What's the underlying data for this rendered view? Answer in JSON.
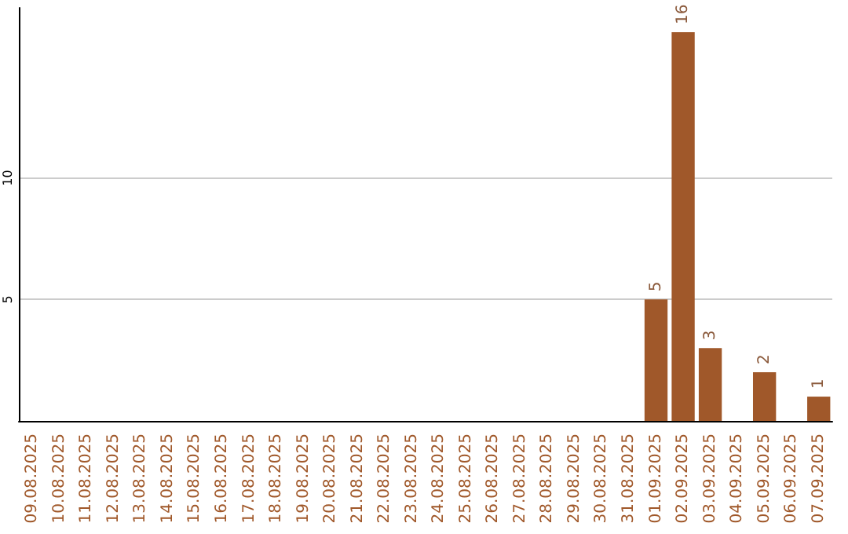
{
  "chart_data": {
    "type": "bar",
    "categories": [
      "09.08.2025",
      "10.08.2025",
      "11.08.2025",
      "12.08.2025",
      "13.08.2025",
      "14.08.2025",
      "15.08.2025",
      "16.08.2025",
      "17.08.2025",
      "18.08.2025",
      "19.08.2025",
      "20.08.2025",
      "21.08.2025",
      "22.08.2025",
      "23.08.2025",
      "24.08.2025",
      "25.08.2025",
      "26.08.2025",
      "27.08.2025",
      "28.08.2025",
      "29.08.2025",
      "30.08.2025",
      "31.08.2025",
      "01.09.2025",
      "02.09.2025",
      "03.09.2025",
      "04.09.2025",
      "05.09.2025",
      "06.09.2025",
      "07.09.2025"
    ],
    "values": [
      0,
      0,
      0,
      0,
      0,
      0,
      0,
      0,
      0,
      0,
      0,
      0,
      0,
      0,
      0,
      0,
      0,
      0,
      0,
      0,
      0,
      0,
      0,
      5,
      16,
      3,
      0,
      2,
      0,
      1
    ],
    "value_labels": [
      null,
      null,
      null,
      null,
      null,
      null,
      null,
      null,
      null,
      null,
      null,
      null,
      null,
      null,
      null,
      null,
      null,
      null,
      null,
      null,
      null,
      null,
      null,
      "5",
      "16",
      "3",
      null,
      "2",
      null,
      "1"
    ],
    "color": "#a0582a",
    "ylim": [
      0,
      17
    ],
    "yticks": [
      5,
      10
    ],
    "grid": "y"
  }
}
